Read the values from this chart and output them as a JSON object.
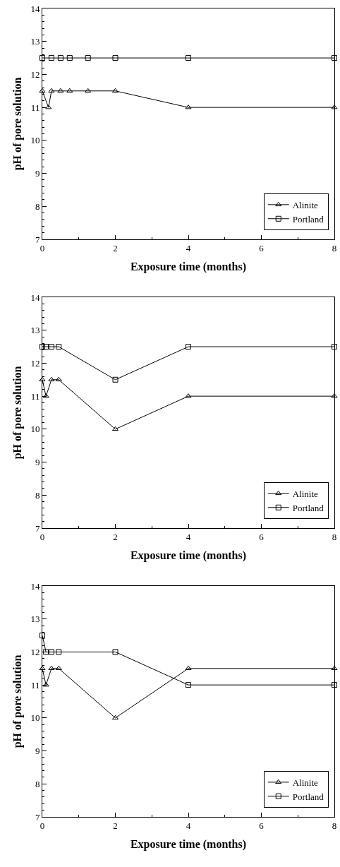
{
  "chart_data": [
    {
      "type": "line",
      "xlabel": "Exposure time (months)",
      "ylabel": "pH of pore solution",
      "xlim": [
        0,
        8
      ],
      "xticks": [
        0,
        2,
        4,
        6,
        8
      ],
      "ylim": [
        7,
        14
      ],
      "yticks": [
        7,
        8,
        9,
        10,
        11,
        12,
        13,
        14
      ],
      "grid": false,
      "legend": "bottom right",
      "line_style": "solid",
      "series": [
        {
          "name": "Alinite",
          "color": "#000000",
          "marker": "triangle",
          "x": [
            0,
            0.17,
            0.25,
            0.5,
            0.75,
            1.25,
            2,
            4,
            8
          ],
          "values": [
            11.5,
            11,
            11.5,
            11.5,
            11.5,
            11.5,
            11.5,
            11,
            11
          ]
        },
        {
          "name": "Portland",
          "color": "#000000",
          "marker": "square",
          "x": [
            0,
            0.25,
            0.5,
            0.75,
            1.25,
            2,
            4,
            8
          ],
          "values": [
            12.5,
            12.5,
            12.5,
            12.5,
            12.5,
            12.5,
            12.5,
            12.5
          ]
        }
      ]
    },
    {
      "type": "line",
      "xlabel": "Exposure time (months)",
      "ylabel": "pH of pore solution",
      "xlim": [
        0,
        8
      ],
      "xticks": [
        0,
        2,
        4,
        6,
        8
      ],
      "ylim": [
        7,
        14
      ],
      "yticks": [
        7,
        8,
        9,
        10,
        11,
        12,
        13,
        14
      ],
      "grid": false,
      "legend": "bottom right",
      "line_style": "solid",
      "series": [
        {
          "name": "Alinite",
          "color": "#000000",
          "marker": "triangle",
          "x": [
            0,
            0.1,
            0.25,
            0.45,
            2,
            4,
            8
          ],
          "values": [
            11.5,
            11,
            11.5,
            11.5,
            10,
            11,
            11
          ]
        },
        {
          "name": "Portland",
          "color": "#000000",
          "marker": "square",
          "x": [
            0,
            0.1,
            0.25,
            0.45,
            2,
            4,
            8
          ],
          "values": [
            12.5,
            12.5,
            12.5,
            12.5,
            11.5,
            12.5,
            12.5
          ]
        }
      ]
    },
    {
      "type": "line",
      "xlabel": "Exposure time (months)",
      "ylabel": "pH of pore solution",
      "xlim": [
        0,
        8
      ],
      "xticks": [
        0,
        2,
        4,
        6,
        8
      ],
      "ylim": [
        7,
        14
      ],
      "yticks": [
        7,
        8,
        9,
        10,
        11,
        12,
        13,
        14
      ],
      "grid": false,
      "legend": "bottom right",
      "line_style": "solid",
      "series": [
        {
          "name": "Alinite",
          "color": "#000000",
          "marker": "triangle",
          "x": [
            0,
            0.1,
            0.25,
            0.45,
            2,
            4,
            8
          ],
          "values": [
            11.5,
            11,
            11.5,
            11.5,
            10,
            11.5,
            11.5
          ]
        },
        {
          "name": "Portland",
          "color": "#000000",
          "marker": "square",
          "x": [
            0,
            0.1,
            0.25,
            0.45,
            2,
            4,
            8
          ],
          "values": [
            12.5,
            12,
            12,
            12,
            12,
            11,
            11
          ]
        }
      ]
    }
  ]
}
